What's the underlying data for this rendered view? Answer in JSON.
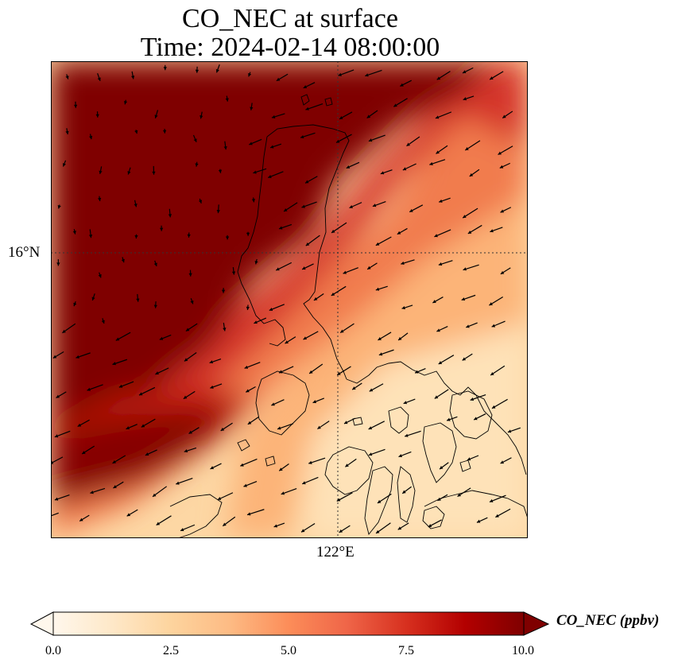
{
  "title": {
    "line1": "CO_NEC at surface",
    "line2": "Time: 2024-02-14 08:00:00"
  },
  "map": {
    "lat_label": "16°N",
    "lon_label": "122°E",
    "gridlines": true
  },
  "colorbar": {
    "label": "CO_NEC (ppbv)",
    "ticks": [
      "0.0",
      "2.5",
      "5.0",
      "7.5",
      "10.0"
    ],
    "min": 0,
    "max": 10,
    "extend": "both",
    "colormap": [
      "#fff7ec",
      "#fee8c8",
      "#fdd49e",
      "#fdbb84",
      "#fc8d59",
      "#ef6548",
      "#d7301f",
      "#b30000",
      "#7f0000"
    ]
  }
}
